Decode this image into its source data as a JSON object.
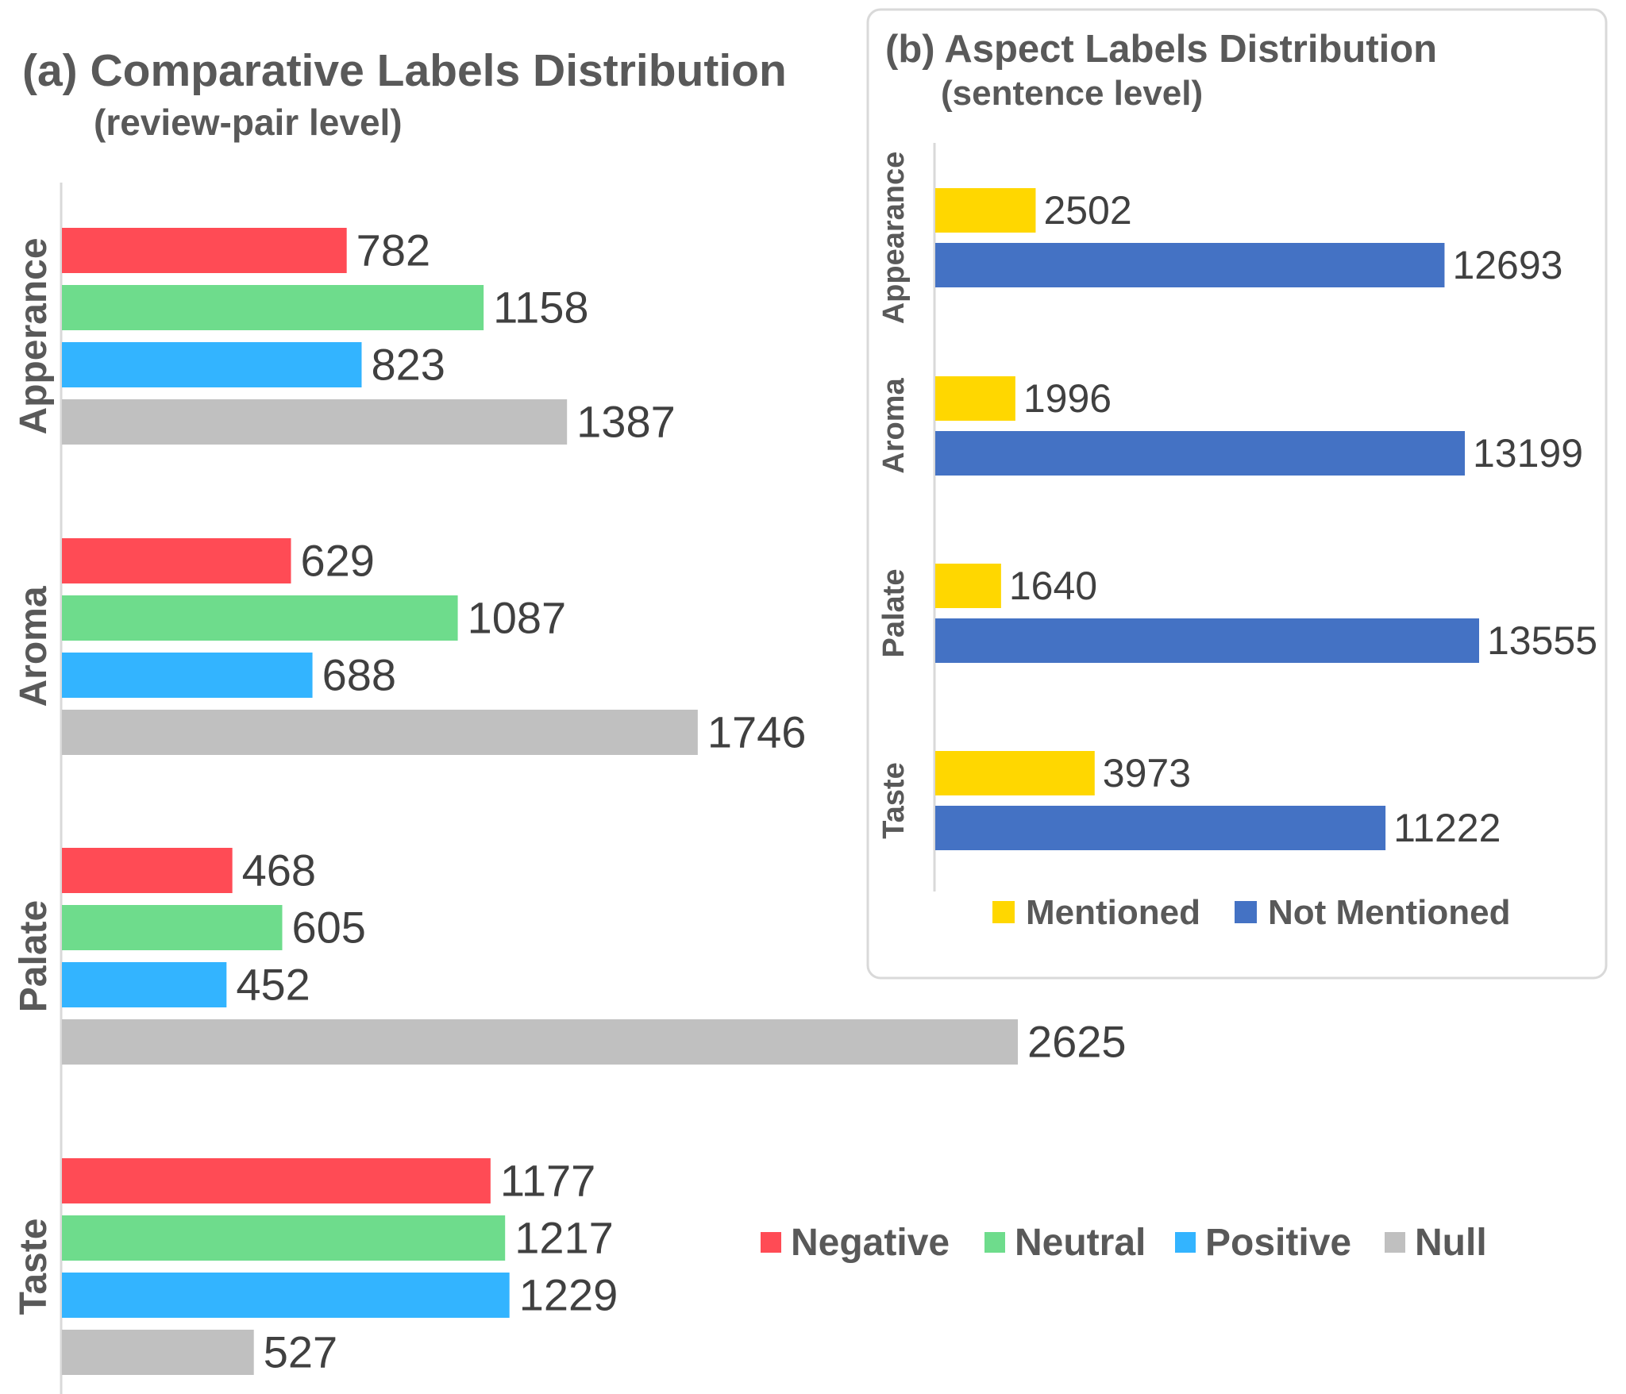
{
  "chart_data": [
    {
      "type": "bar",
      "orientation": "horizontal",
      "title": "(a) Comparative Labels Distribution",
      "subtitle": "(review-pair level)",
      "categories": [
        "Apperance",
        "Aroma",
        "Palate",
        "Taste"
      ],
      "series": [
        {
          "name": "Negative",
          "color": "#FF4B55",
          "values": [
            782,
            629,
            468,
            1177
          ]
        },
        {
          "name": "Neutral",
          "color": "#6EDC8C",
          "values": [
            1158,
            1087,
            605,
            1217
          ]
        },
        {
          "name": "Positive",
          "color": "#33B4FF",
          "values": [
            823,
            688,
            452,
            1229
          ]
        },
        {
          "name": "Null",
          "color": "#C0C0C0",
          "values": [
            1387,
            1746,
            2625,
            527
          ]
        }
      ],
      "xlim": [
        0,
        2625
      ],
      "legend": "bottom-right",
      "grid": false
    },
    {
      "type": "bar",
      "orientation": "horizontal",
      "title": "(b) Aspect Labels Distribution",
      "subtitle": "(sentence level)",
      "categories": [
        "Appearance",
        "Aroma",
        "Palate",
        "Taste"
      ],
      "series": [
        {
          "name": "Mentioned",
          "color": "#FFD700",
          "values": [
            2502,
            1996,
            1640,
            3973
          ]
        },
        {
          "name": "Not Mentioned",
          "color": "#4472C4",
          "values": [
            12693,
            13199,
            13555,
            11222
          ]
        }
      ],
      "xlim": [
        0,
        13555
      ],
      "legend": "bottom",
      "grid": false
    }
  ]
}
